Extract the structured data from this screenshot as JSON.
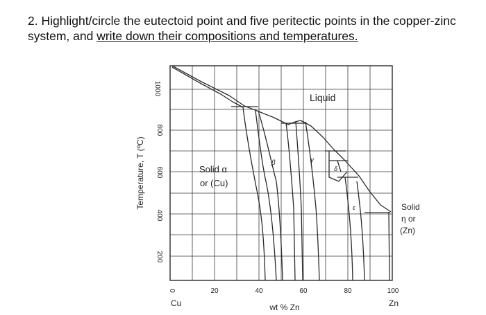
{
  "question": {
    "prefix": "2. Highlight/circle the eutectoid point and five peritectic points in the copper-zinc system, and ",
    "underlined": "write down their compositions and temperatures."
  },
  "diagram": {
    "y_axis_label": "Temperature, T (ºC)",
    "x_axis_label": "wt % Zn",
    "x_ticks": [
      "0",
      "20",
      "40",
      "60",
      "80",
      "100"
    ],
    "y_ticks": [
      "200",
      "400",
      "600",
      "800",
      "1000"
    ],
    "left_end_label": "Cu",
    "right_end_label": "Zn",
    "phase_labels": {
      "liquid": "Liquid",
      "alpha_line1": "Solid α",
      "alpha_line2": "or (Cu)",
      "beta": "β",
      "gamma": "γ",
      "delta": "δ",
      "epsilon": "ε",
      "eta_line1": "Solid",
      "eta_line2": "η or",
      "eta_line3": "(Zn)"
    },
    "colors": {
      "line": "#2a2a2a",
      "grid": "#3a3a3a"
    }
  }
}
